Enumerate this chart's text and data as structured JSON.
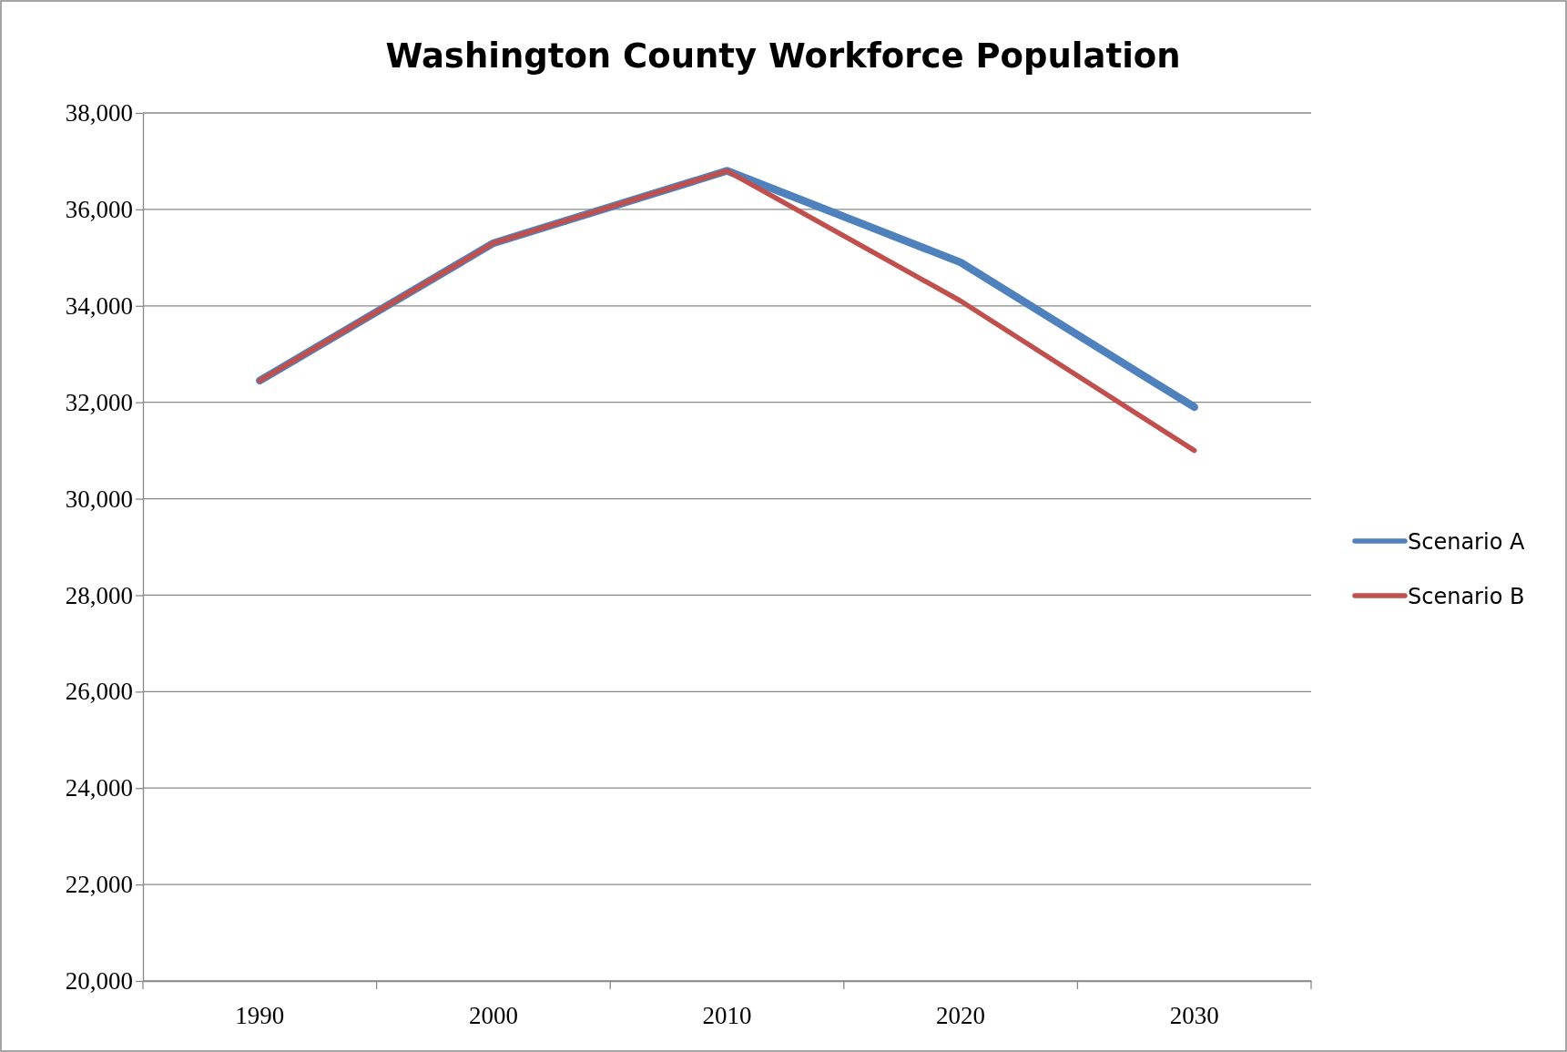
{
  "chart_data": {
    "type": "line",
    "title": "Washington County Workforce Population",
    "categories": [
      "1990",
      "2000",
      "2010",
      "2020",
      "2030"
    ],
    "series": [
      {
        "name": "Scenario A",
        "color": "#4f81bd",
        "values": [
          32450,
          35300,
          36800,
          34900,
          31900
        ]
      },
      {
        "name": "Scenario B",
        "color": "#c0504d",
        "values": [
          32450,
          35300,
          36800,
          34100,
          31000
        ]
      }
    ],
    "ylim": [
      20000,
      38000
    ],
    "yticks": [
      {
        "value": 20000,
        "label": "20,000"
      },
      {
        "value": 22000,
        "label": "22,000"
      },
      {
        "value": 24000,
        "label": "24,000"
      },
      {
        "value": 26000,
        "label": "26,000"
      },
      {
        "value": 28000,
        "label": "28,000"
      },
      {
        "value": 30000,
        "label": "30,000"
      },
      {
        "value": 32000,
        "label": "32,000"
      },
      {
        "value": 34000,
        "label": "34,000"
      },
      {
        "value": 36000,
        "label": "36,000"
      },
      {
        "value": 38000,
        "label": "38,000"
      }
    ],
    "grid": "y",
    "legend": "right",
    "marker": "none",
    "line_style": "solid"
  }
}
